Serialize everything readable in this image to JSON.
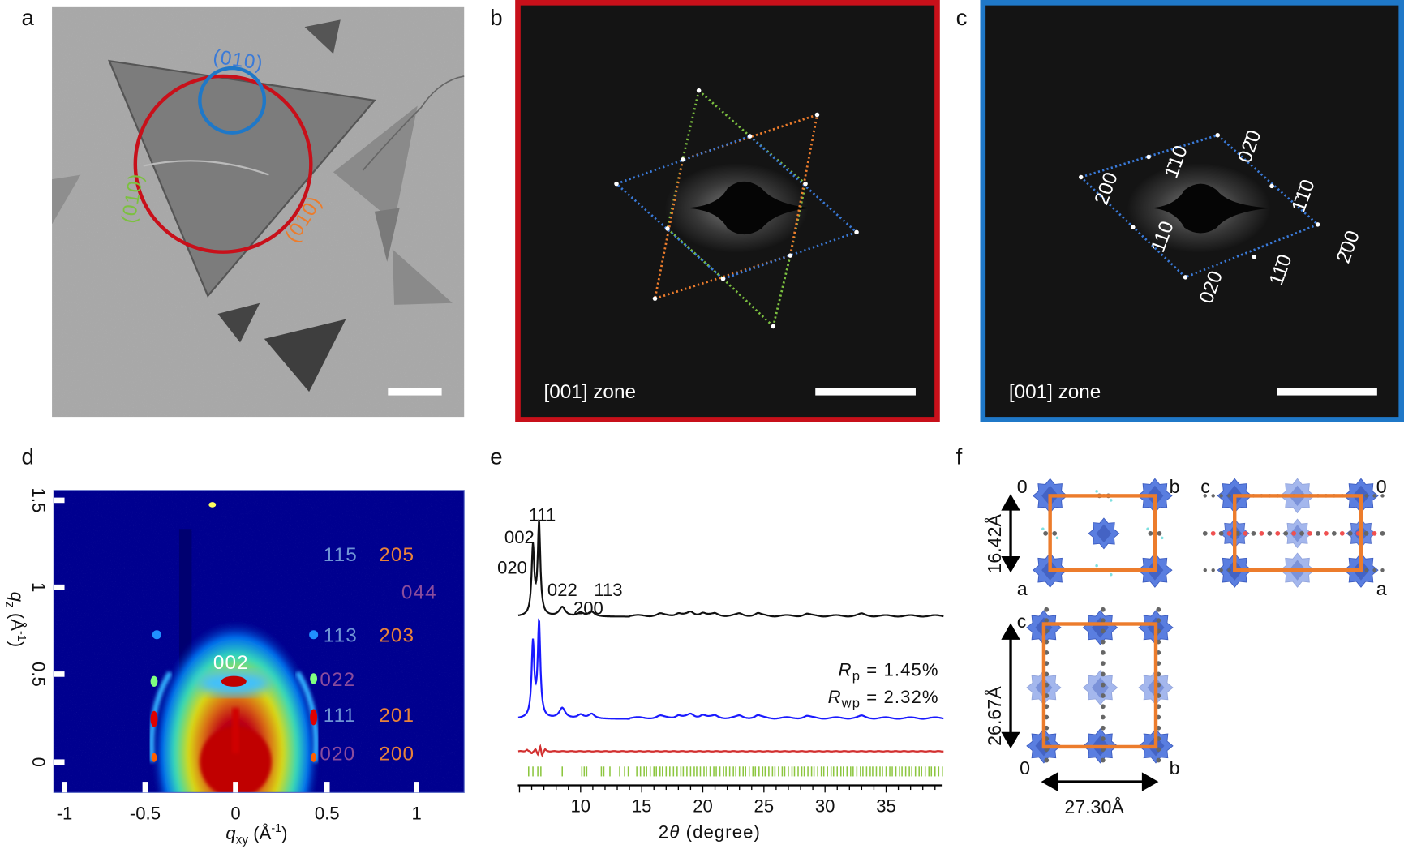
{
  "panels": {
    "a": "a",
    "b": "b",
    "c": "c",
    "d": "d",
    "e": "e",
    "f": "f"
  },
  "colors": {
    "red_frame": "#c8101a",
    "blue_frame": "#1f78c8",
    "orange": "#ec7c2c",
    "green": "#7cc040",
    "blue_line": "#3a7ad8",
    "hkl_blue": "#6f94d4",
    "hkl_orange": "#e8823a",
    "hkl_purple": "#8a4c9c",
    "observed": "#111111",
    "calculated": "#1a1aff",
    "difference": "#d23030",
    "reflections": "#8cc63f",
    "cluster": "#5a7ee0",
    "cell": "#ec7c2c"
  },
  "panel_a": {
    "labels": [
      {
        "text": "(010)",
        "color": "#3a7ad8"
      },
      {
        "text": "(010)",
        "color": "#7cc040"
      },
      {
        "text": "(010)",
        "color": "#ec7c2c"
      }
    ]
  },
  "panel_b": {
    "zone": "[001] zone"
  },
  "panel_c": {
    "zone": "[001] zone",
    "spots": [
      "200",
      "1̄10",
      "02̄0",
      "1̄1̄0",
      "2̄00",
      "11̄0",
      "020",
      "110"
    ]
  },
  "chart_data": [
    {
      "panel": "d",
      "type": "heatmap",
      "xlabel": {
        "sym": "q",
        "sub": "xy",
        "unit": " (Å",
        "sup": "-1",
        ")": ")"
      },
      "ylabel": {
        "sym": "q",
        "sub": "z",
        "unit": " (Å",
        "sup": "-1",
        ")": ")"
      },
      "xlim": [
        -1.05,
        1.25
      ],
      "ylim": [
        -0.17,
        1.57
      ],
      "xticks": [
        "-1",
        "-0.5",
        "0",
        "0.5",
        "1"
      ],
      "yticks": [
        "0",
        "0.5",
        "1",
        "1.5"
      ],
      "colormap": "jet",
      "annotations": [
        {
          "text": "115",
          "color": "#6f94d4"
        },
        {
          "text": "205",
          "color": "#e8823a"
        },
        {
          "text": "044",
          "color": "#8a4c9c"
        },
        {
          "text": "113",
          "color": "#6f94d4"
        },
        {
          "text": "203",
          "color": "#e8823a"
        },
        {
          "text": "002",
          "color": "#ffffff"
        },
        {
          "text": "022",
          "color": "#8a4c9c"
        },
        {
          "text": "111",
          "color": "#6f94d4"
        },
        {
          "text": "201",
          "color": "#e8823a"
        },
        {
          "text": "020",
          "color": "#8a4c9c"
        },
        {
          "text": "200",
          "color": "#e8823a"
        }
      ]
    },
    {
      "panel": "e",
      "type": "line",
      "xlabel": {
        "pre": "2",
        "sym": "θ",
        "post": " (degree)"
      },
      "xlim": [
        4.9,
        39.7
      ],
      "xticks": [
        10,
        15,
        20,
        25,
        30,
        35
      ],
      "peak_labels": [
        "111",
        "002",
        "020",
        "022",
        "113",
        "200"
      ],
      "series": [
        {
          "role": "observed",
          "peaks": [
            [
              6.1,
              0.74
            ],
            [
              6.6,
              1.0
            ],
            [
              8.5,
              0.1
            ],
            [
              10.0,
              0.04
            ],
            [
              10.9,
              0.05
            ],
            [
              16.5,
              0.02
            ],
            [
              18.0,
              0.03
            ],
            [
              19.0,
              0.035
            ],
            [
              20.0,
              0.035
            ],
            [
              21.0,
              0.02
            ],
            [
              23.0,
              0.02
            ],
            [
              24.5,
              0.025
            ],
            [
              28.5,
              0.02
            ],
            [
              33.0,
              0.02
            ]
          ]
        },
        {
          "role": "calculated",
          "peaks": [
            [
              6.1,
              0.78
            ],
            [
              6.6,
              1.0
            ],
            [
              8.5,
              0.11
            ],
            [
              10.0,
              0.04
            ],
            [
              10.9,
              0.05
            ],
            [
              16.5,
              0.02
            ],
            [
              18.0,
              0.03
            ],
            [
              19.0,
              0.035
            ],
            [
              20.0,
              0.035
            ],
            [
              21.0,
              0.02
            ],
            [
              23.0,
              0.02
            ],
            [
              24.5,
              0.025
            ],
            [
              28.5,
              0.02
            ],
            [
              33.0,
              0.02
            ]
          ]
        },
        {
          "role": "difference",
          "peaks": [
            [
              5.6,
              0.03
            ],
            [
              6.0,
              -0.04
            ],
            [
              6.3,
              0.05
            ],
            [
              6.5,
              -0.08
            ],
            [
              6.7,
              0.12
            ],
            [
              6.85,
              -0.1
            ],
            [
              7.1,
              0.04
            ]
          ]
        }
      ],
      "reflections": [
        5.75,
        6.1,
        6.5,
        6.75,
        8.5,
        10.1,
        10.3,
        10.5,
        11.7,
        11.9,
        12.4,
        13.2,
        13.6,
        13.9,
        14.6,
        14.9,
        15.2,
        15.4,
        15.7,
        16.0,
        16.2,
        16.5,
        16.7,
        17.0,
        17.3,
        17.6,
        17.9,
        18.2,
        18.4,
        18.7,
        19.0,
        19.3,
        19.5,
        19.8,
        20.1,
        20.3,
        20.6,
        20.9,
        21.1,
        21.4,
        21.7,
        21.9,
        22.2,
        22.5,
        22.7,
        23.0,
        23.3,
        23.5,
        23.8,
        24.1,
        24.3,
        24.6,
        24.9,
        25.1,
        25.4,
        25.7,
        25.9,
        26.2,
        26.5,
        26.7,
        27.0,
        27.3,
        27.5,
        27.8,
        28.1,
        28.3,
        28.6,
        28.9,
        29.1,
        29.4,
        29.7,
        29.9,
        30.2,
        30.5,
        30.7,
        31.0,
        31.3,
        31.5,
        31.8,
        32.1,
        32.3,
        32.6,
        32.9,
        33.1,
        33.4,
        33.7,
        33.9,
        34.2,
        34.5,
        34.7,
        35.0,
        35.3,
        35.5,
        35.8,
        36.1,
        36.3,
        36.6,
        36.9,
        37.1,
        37.4,
        37.7,
        37.9,
        38.2,
        38.5,
        38.7,
        39.0,
        39.3,
        39.6
      ],
      "stats": {
        "rp_sym": "R",
        "rp_sub": "p",
        "rp_val": " = 1.45%",
        "rwp_sym": "R",
        "rwp_sub": "wp",
        "rwp_val": " = 2.32%"
      }
    }
  ],
  "panel_f": {
    "view1": {
      "origin": "0",
      "right": "b",
      "bottom": "a",
      "dim": "16.42Å"
    },
    "view2": {
      "left": "c",
      "right": "0",
      "bottom": "a"
    },
    "view3": {
      "top": "c",
      "origin": "0",
      "right": "b",
      "dim_v": "26.67Å",
      "dim_h": "27.30Å"
    }
  }
}
